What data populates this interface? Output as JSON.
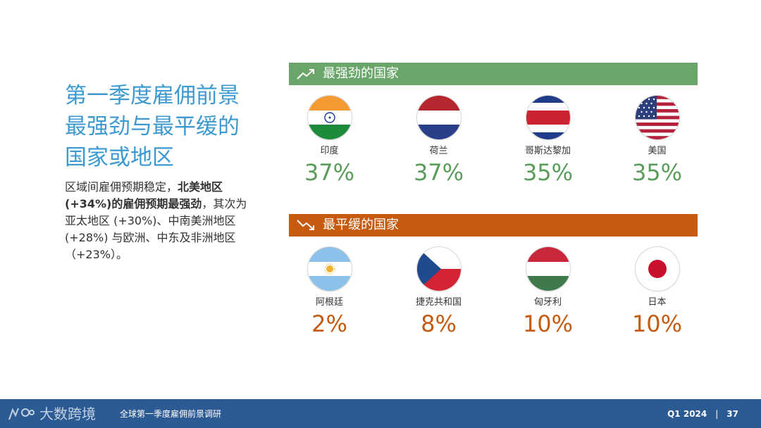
{
  "heading": {
    "line1": "第一季度雇佣前景",
    "line2": "最强劲与最平缓的",
    "line3": "国家或地区"
  },
  "description": {
    "p1": "区域间雇佣预期稳定，",
    "b1": "北美地区",
    "b2": "(+34%)的雇佣预期最强劲",
    "p2": "，其次为亚太地区 (+30%)、中南美洲地区(+28%) 与欧洲、中东及非洲地区（+23%）。"
  },
  "strongest": {
    "label": "最强劲的国家",
    "icon": "trend-up-icon",
    "color": "#6aa56a",
    "countries": [
      {
        "name": "印度",
        "value": "37%",
        "flag": "india-flag-icon"
      },
      {
        "name": "荷兰",
        "value": "37%",
        "flag": "netherlands-flag-icon"
      },
      {
        "name": "哥斯达黎加",
        "value": "35%",
        "flag": "costa-rica-flag-icon"
      },
      {
        "name": "美国",
        "value": "35%",
        "flag": "usa-flag-icon"
      }
    ]
  },
  "weakest": {
    "label": "最平缓的国家",
    "icon": "trend-down-icon",
    "color": "#c65b10",
    "countries": [
      {
        "name": "阿根廷",
        "value": "2%",
        "flag": "argentina-flag-icon"
      },
      {
        "name": "捷克共和国",
        "value": "8%",
        "flag": "czech-flag-icon"
      },
      {
        "name": "匈牙利",
        "value": "10%",
        "flag": "hungary-flag-icon"
      },
      {
        "name": "日本",
        "value": "10%",
        "flag": "japan-flag-icon"
      }
    ]
  },
  "footer": {
    "brand": "大数跨境",
    "title": "全球第一季度雇佣前景调研",
    "period": "Q1 2024",
    "separator": "|",
    "page": "37",
    "color": "#2c5a93"
  }
}
